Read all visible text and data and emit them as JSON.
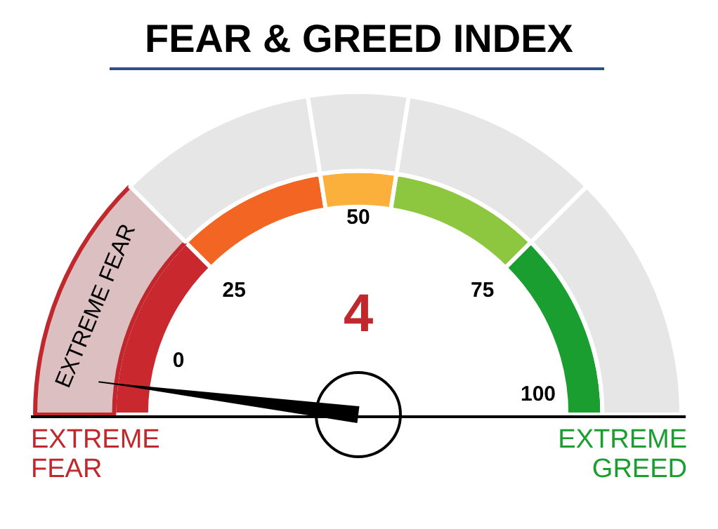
{
  "chart_data": {
    "type": "donut",
    "title": "FEAR & GREED INDEX",
    "categories": [
      "EXTREME FEAR",
      null,
      null,
      null,
      null
    ],
    "series": [
      {
        "values": [
          25,
          20,
          10,
          20,
          25
        ],
        "colors": [
          "#c8282e",
          "#f26522",
          "#fbb03b",
          "#8dc63f",
          "#1a9e2f"
        ]
      },
      {
        "values": [
          25,
          20,
          10,
          20,
          25
        ],
        "colors": [
          "#dcbfc0",
          "#e6e6e6",
          "#e6e6e6",
          "#e6e6e6",
          "#e6e6e6"
        ]
      }
    ],
    "needle": "EXTREME FEAR",
    "annotations": [
      "0",
      "25",
      "50",
      "75",
      "100",
      "4",
      "EXTREME FEAR",
      "EXTREME GREED"
    ],
    "legend": false
  }
}
